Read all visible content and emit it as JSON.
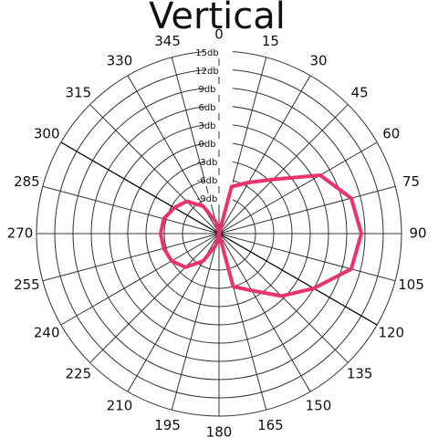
{
  "chart_data": {
    "type": "polar",
    "title": "Vertical",
    "x": [
      0,
      15,
      30,
      45,
      60,
      75,
      90,
      105,
      120,
      135,
      150,
      165,
      180,
      195,
      210,
      225,
      240,
      255,
      270,
      285,
      300,
      315,
      330,
      345
    ],
    "values": [
      -15,
      -7,
      -5.3,
      -2.4,
      4.2,
      7.5,
      8.4,
      7.5,
      3,
      -0.5,
      -4.2,
      -6,
      -15,
      -13,
      -9.8,
      -7.2,
      -6,
      -5.6,
      -5.4,
      -5.6,
      -6.5,
      -7.5,
      -9.8,
      -13
    ],
    "color": "#e8336b",
    "xticks": [
      0,
      15,
      30,
      45,
      60,
      75,
      90,
      105,
      120,
      135,
      150,
      165,
      180,
      195,
      210,
      225,
      240,
      255,
      270,
      285,
      300,
      315,
      330,
      345
    ],
    "ylim": [
      -15,
      15
    ],
    "yticks": [
      {
        "value": -9,
        "label": "-9db"
      },
      {
        "value": -6,
        "label": "-6db"
      },
      {
        "value": -3,
        "label": "-3db"
      },
      {
        "value": 0,
        "label": "0db"
      },
      {
        "value": 3,
        "label": "3db"
      },
      {
        "value": 6,
        "label": "6db"
      },
      {
        "value": 9,
        "label": "9db"
      },
      {
        "value": 12,
        "label": "12db"
      },
      {
        "value": 15,
        "label": "15db"
      }
    ],
    "grid": true
  }
}
